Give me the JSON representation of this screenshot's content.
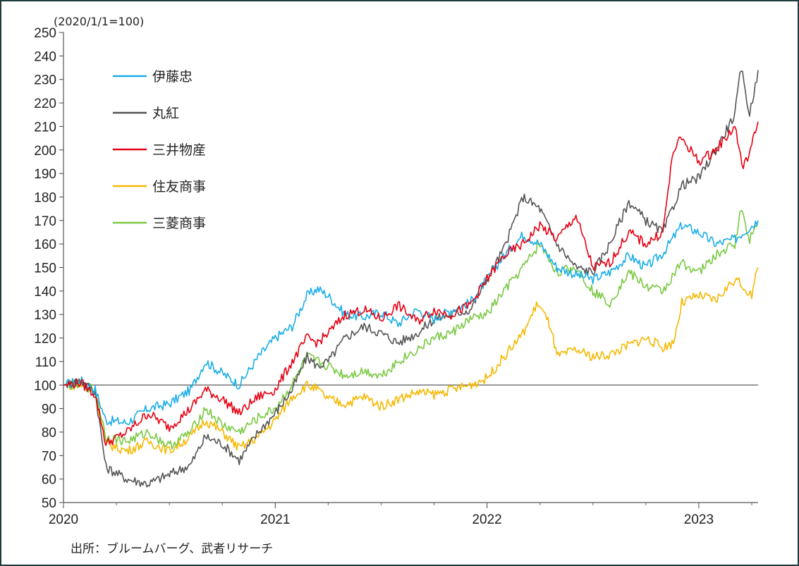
{
  "chart_data": {
    "type": "line",
    "unit_label": "(2020/1/1=100)",
    "source": "出所：ブルームバーグ、武者リサーチ",
    "ylim": [
      50,
      250
    ],
    "y_ticks": [
      50,
      60,
      70,
      80,
      90,
      100,
      110,
      120,
      130,
      140,
      150,
      160,
      170,
      180,
      190,
      200,
      210,
      220,
      230,
      240,
      250
    ],
    "x_ticks": [
      "2020",
      "2021",
      "2022",
      "2023"
    ],
    "xlim": [
      2020.0,
      2023.28
    ],
    "reference_line": 100,
    "grid": false,
    "legend_position": "top-left",
    "series": [
      {
        "name": "伊藤忠",
        "color": "#1aaee6",
        "x": [
          2020.0,
          2020.08,
          2020.15,
          2020.2,
          2020.3,
          2020.4,
          2020.5,
          2020.6,
          2020.67,
          2020.75,
          2020.83,
          2020.92,
          2021.0,
          2021.08,
          2021.15,
          2021.2,
          2021.25,
          2021.33,
          2021.42,
          2021.5,
          2021.58,
          2021.67,
          2021.75,
          2021.83,
          2021.92,
          2022.0,
          2022.08,
          2022.17,
          2022.25,
          2022.33,
          2022.42,
          2022.5,
          2022.58,
          2022.67,
          2022.75,
          2022.83,
          2022.92,
          2023.0,
          2023.08,
          2023.17,
          2023.28
        ],
        "values": [
          100,
          102,
          98,
          85,
          84,
          90,
          92,
          98,
          110,
          105,
          100,
          112,
          120,
          125,
          138,
          141,
          138,
          130,
          129,
          131,
          126,
          132,
          128,
          132,
          135,
          145,
          155,
          164,
          160,
          150,
          147,
          145,
          148,
          155,
          150,
          156,
          168,
          165,
          160,
          162,
          170
        ]
      },
      {
        "name": "丸紅",
        "color": "#555555",
        "x": [
          2020.0,
          2020.08,
          2020.15,
          2020.2,
          2020.3,
          2020.4,
          2020.5,
          2020.6,
          2020.67,
          2020.75,
          2020.83,
          2020.92,
          2021.0,
          2021.08,
          2021.15,
          2021.2,
          2021.25,
          2021.33,
          2021.42,
          2021.5,
          2021.58,
          2021.67,
          2021.75,
          2021.83,
          2021.92,
          2022.0,
          2022.08,
          2022.17,
          2022.25,
          2022.33,
          2022.42,
          2022.5,
          2022.58,
          2022.67,
          2022.75,
          2022.83,
          2022.92,
          2023.0,
          2023.08,
          2023.17,
          2023.2,
          2023.24,
          2023.28
        ],
        "values": [
          100,
          102,
          97,
          65,
          60,
          58,
          62,
          66,
          78,
          75,
          68,
          80,
          88,
          98,
          112,
          108,
          110,
          120,
          125,
          122,
          118,
          122,
          128,
          130,
          132,
          145,
          158,
          180,
          175,
          160,
          150,
          148,
          160,
          178,
          170,
          165,
          185,
          188,
          200,
          215,
          235,
          215,
          234
        ]
      },
      {
        "name": "三井物産",
        "color": "#e60012",
        "x": [
          2020.0,
          2020.08,
          2020.15,
          2020.2,
          2020.3,
          2020.4,
          2020.5,
          2020.6,
          2020.67,
          2020.75,
          2020.83,
          2020.92,
          2021.0,
          2021.08,
          2021.15,
          2021.2,
          2021.25,
          2021.33,
          2021.42,
          2021.5,
          2021.58,
          2021.67,
          2021.75,
          2021.83,
          2021.92,
          2022.0,
          2022.08,
          2022.17,
          2022.25,
          2022.33,
          2022.42,
          2022.5,
          2022.58,
          2022.67,
          2022.75,
          2022.83,
          2022.88,
          2022.92,
          2023.0,
          2023.08,
          2023.17,
          2023.21,
          2023.25,
          2023.28
        ],
        "values": [
          100,
          101,
          96,
          75,
          80,
          88,
          82,
          90,
          98,
          94,
          88,
          95,
          98,
          110,
          120,
          118,
          122,
          130,
          132,
          128,
          134,
          127,
          132,
          130,
          134,
          145,
          155,
          160,
          168,
          162,
          172,
          150,
          152,
          165,
          160,
          165,
          200,
          205,
          195,
          200,
          210,
          192,
          202,
          212
        ]
      },
      {
        "name": "住友商事",
        "color": "#f5b800",
        "x": [
          2020.0,
          2020.08,
          2020.15,
          2020.2,
          2020.3,
          2020.4,
          2020.5,
          2020.6,
          2020.67,
          2020.75,
          2020.83,
          2020.92,
          2021.0,
          2021.08,
          2021.15,
          2021.2,
          2021.25,
          2021.33,
          2021.42,
          2021.5,
          2021.58,
          2021.67,
          2021.75,
          2021.83,
          2021.92,
          2022.0,
          2022.08,
          2022.17,
          2022.24,
          2022.3,
          2022.33,
          2022.42,
          2022.5,
          2022.58,
          2022.67,
          2022.75,
          2022.83,
          2022.88,
          2022.92,
          2023.0,
          2023.08,
          2023.17,
          2023.21,
          2023.25,
          2023.28
        ],
        "values": [
          100,
          100,
          97,
          75,
          72,
          76,
          72,
          78,
          85,
          80,
          73,
          78,
          85,
          95,
          100,
          98,
          94,
          92,
          95,
          91,
          94,
          97,
          96,
          98,
          100,
          103,
          112,
          122,
          135,
          125,
          112,
          115,
          112,
          113,
          117,
          120,
          116,
          118,
          135,
          138,
          136,
          145,
          142,
          138,
          150
        ]
      },
      {
        "name": "三菱商事",
        "color": "#7ac943",
        "x": [
          2020.0,
          2020.08,
          2020.15,
          2020.2,
          2020.3,
          2020.4,
          2020.5,
          2020.6,
          2020.67,
          2020.75,
          2020.83,
          2020.92,
          2021.0,
          2021.08,
          2021.15,
          2021.2,
          2021.25,
          2021.33,
          2021.42,
          2021.5,
          2021.58,
          2021.67,
          2021.75,
          2021.83,
          2021.92,
          2022.0,
          2022.08,
          2022.17,
          2022.25,
          2022.33,
          2022.42,
          2022.5,
          2022.58,
          2022.67,
          2022.75,
          2022.83,
          2022.92,
          2023.0,
          2023.08,
          2023.17,
          2023.2,
          2023.24,
          2023.28
        ],
        "values": [
          100,
          100,
          98,
          78,
          76,
          80,
          74,
          80,
          90,
          83,
          80,
          86,
          90,
          100,
          112,
          110,
          108,
          104,
          106,
          104,
          110,
          115,
          120,
          122,
          128,
          130,
          140,
          150,
          160,
          148,
          150,
          140,
          135,
          148,
          142,
          140,
          152,
          148,
          155,
          160,
          175,
          162,
          170
        ]
      }
    ]
  }
}
